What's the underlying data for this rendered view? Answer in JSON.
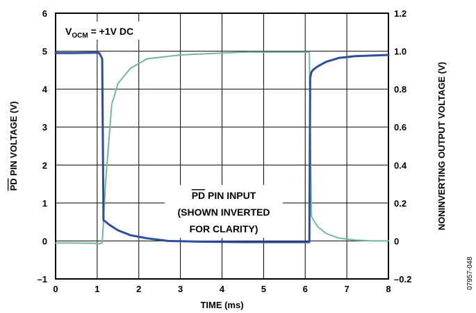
{
  "chart_data": {
    "type": "line",
    "xlabel": "TIME (ms)",
    "ylabel_left_overline": "PD",
    "ylabel_left_rest": " PIN VOLTAGE (V)",
    "ylabel_right": "NONINVERTING OUTPUT VOLTAGE (V)",
    "xlim": [
      0,
      8
    ],
    "ylim_left": [
      -1,
      6
    ],
    "ylim_right": [
      -0.2,
      1.2
    ],
    "grid": true,
    "x_ticks": [
      "0",
      "1",
      "2",
      "3",
      "4",
      "5",
      "6",
      "7",
      "8"
    ],
    "y_ticks_left": [
      "–1",
      "0",
      "1",
      "2",
      "3",
      "4",
      "5",
      "6"
    ],
    "y_ticks_right": [
      "–0.2",
      "0",
      "0.2",
      "0.4",
      "0.6",
      "0.8",
      "1.0",
      "1.2"
    ],
    "annotation_vocm": {
      "main": "V",
      "sub": "OCM",
      "rest": " = +1V DC"
    },
    "annotation_pd": {
      "line1_overline": "PD",
      "line1_rest": " PIN INPUT",
      "line2": "(SHOWN INVERTED",
      "line3": "FOR CLARITY)"
    },
    "figure_id": "07957-048",
    "series": [
      {
        "axis": "left",
        "color": "#2e4e9c",
        "x": [
          0,
          0.5,
          0.9,
          1.05,
          1.12,
          1.15,
          1.3,
          1.5,
          1.8,
          2.2,
          2.7,
          3.5,
          4.5,
          5.5,
          6.0,
          6.1,
          6.12,
          6.15,
          6.2,
          6.3,
          6.5,
          6.8,
          7.2,
          8.0
        ],
        "y": [
          4.95,
          4.95,
          4.96,
          4.95,
          4.8,
          0.55,
          0.42,
          0.28,
          0.15,
          0.07,
          0.0,
          -0.02,
          -0.03,
          -0.03,
          -0.03,
          -0.03,
          4.3,
          4.45,
          4.52,
          4.6,
          4.72,
          4.82,
          4.87,
          4.9
        ]
      },
      {
        "axis": "right",
        "color": "#6fb89a",
        "x": [
          0,
          0.9,
          1.05,
          1.12,
          1.2,
          1.35,
          1.5,
          1.8,
          2.2,
          3.0,
          4.0,
          4.6,
          5.0,
          6.1,
          6.15,
          6.2,
          6.3,
          6.5,
          6.8,
          7.2,
          7.6,
          8.0
        ],
        "y": [
          -0.01,
          -0.012,
          -0.015,
          -0.01,
          0.3,
          0.72,
          0.83,
          0.91,
          0.96,
          0.98,
          0.99,
          0.995,
          0.995,
          0.995,
          0.13,
          0.11,
          0.075,
          0.04,
          0.015,
          0.005,
          0.0,
          0.0
        ]
      }
    ]
  }
}
